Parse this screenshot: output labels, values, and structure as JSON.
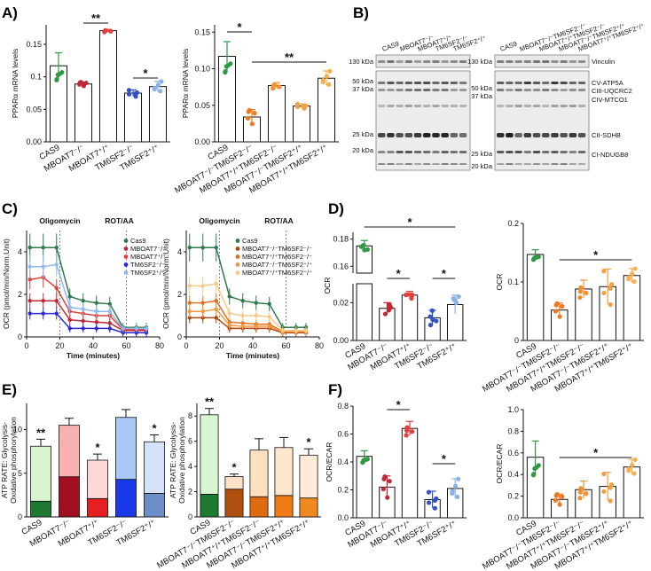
{
  "figure": {
    "panel_labels": [
      "A)",
      "B)",
      "C)",
      "D)",
      "E)",
      "F)"
    ],
    "western_blot": {
      "columns_left": [
        "CAS9",
        "MBOAT7⁻/⁻",
        "MBOAT7⁺/⁺",
        "TM6SF2⁻/⁻",
        "TM6SF2⁺/⁺"
      ],
      "columns_right": [
        "CAS9",
        "MBOAT7⁻/⁻TM6SF2⁻/⁻",
        "MBOAT7⁺/⁺TM6SF2⁻/⁻",
        "MBOAT7⁻/⁻TM6SF2⁺/⁺",
        "MBOAT7⁺/⁺TM6SF2⁺/⁺"
      ],
      "kda_left_top": "130 kDa",
      "kda_left": [
        "50 kDa",
        "37 kDa",
        "25 kDa",
        "20 kDa"
      ],
      "kda_right_top": "130 kDa",
      "kda_right": [
        "50 kDa",
        "37 kDa",
        "25 kDa",
        "20 kDa"
      ],
      "proteins": [
        "Vinculin",
        "CV-ATP5A",
        "CIII-UQCRC2",
        "CIV-MTCO1",
        "CII-SDHB",
        "CI-NDUGB8"
      ]
    }
  },
  "chart_data": [
    {
      "id": "A1",
      "type": "bar",
      "ylabel": "PPARα mRNA levels",
      "ylim": [
        0,
        0.18
      ],
      "yticks": [
        "0.00",
        "0.05",
        "0.1",
        "0.15"
      ],
      "categories": [
        "CAS9",
        "MBOAT7⁻/⁻",
        "MBOAT7⁺/⁺",
        "TM6SF2⁻/⁻",
        "TM6SF2⁺/⁺"
      ],
      "values": [
        0.117,
        0.089,
        0.171,
        0.075,
        0.085
      ],
      "errors": [
        0.02,
        0.003,
        0.002,
        0.005,
        0.008
      ],
      "colors": [
        "#2e9a44",
        "#c0283a",
        "#e0403a",
        "#3250c8",
        "#8ab2ea"
      ],
      "significance": [
        {
          "label": "**",
          "from": 1,
          "to": 2
        },
        {
          "label": "*",
          "from": 3,
          "to": 4
        }
      ]
    },
    {
      "id": "A2",
      "type": "bar",
      "ylabel": "PPARα mRNA levels",
      "ylim": [
        0,
        0.16
      ],
      "yticks": [
        "0.00",
        "0.05",
        "0.10",
        "0.15"
      ],
      "categories": [
        "CAS9",
        "MBOAT7⁻/⁻TM6SF2⁻/⁻",
        "MBOAT7⁺/⁺TM6SF2⁻/⁻",
        "MBOAT7⁻/⁻TM6SF2⁺/⁺",
        "MBOAT7⁺/⁺TM6SF2⁺/⁺"
      ],
      "values": [
        0.117,
        0.034,
        0.077,
        0.049,
        0.087
      ],
      "errors": [
        0.02,
        0.01,
        0.004,
        0.003,
        0.01
      ],
      "colors": [
        "#2e9a44",
        "#f07820",
        "#f29030",
        "#f4a040",
        "#f6b050"
      ],
      "significance": [
        {
          "label": "*",
          "from": 0,
          "to": 1
        },
        {
          "label": "**",
          "from": 1,
          "to": 4
        }
      ]
    },
    {
      "id": "C1",
      "type": "line",
      "xlabel": "Time (minutes)",
      "ylabel": "OCR (pmol/min/Norm.Unit)",
      "xlim": [
        0,
        80
      ],
      "ylim": [
        0,
        5
      ],
      "xticks": [
        "0",
        "20",
        "40",
        "60",
        "80"
      ],
      "yticks": [
        "0",
        "2",
        "4"
      ],
      "annotations": [
        "Oligomycin",
        "ROT/AA"
      ],
      "x": [
        2,
        10,
        18,
        26,
        34,
        42,
        50,
        58,
        66,
        72
      ],
      "series": [
        {
          "name": "Cas9",
          "color": "#2e7a4c",
          "values": [
            4.2,
            4.2,
            4.2,
            1.9,
            1.7,
            1.6,
            1.55,
            0.45,
            0.45,
            0.45
          ]
        },
        {
          "name": "MBOAT7⁻/⁻",
          "color": "#c0283a",
          "values": [
            1.7,
            1.7,
            1.7,
            0.8,
            0.75,
            0.7,
            0.65,
            0.3,
            0.3,
            0.3
          ]
        },
        {
          "name": "MBOAT7⁺/⁺",
          "color": "#e0403a",
          "values": [
            2.7,
            2.8,
            2.3,
            1.2,
            1.1,
            1.0,
            1.0,
            0.35,
            0.35,
            0.35
          ]
        },
        {
          "name": "TM6SF2⁻/⁻",
          "color": "#2a2ad0",
          "values": [
            1.1,
            1.1,
            1.1,
            0.4,
            0.4,
            0.4,
            0.4,
            0.2,
            0.2,
            0.2
          ]
        },
        {
          "name": "TM6SF2⁺/⁺",
          "color": "#90b8f0",
          "values": [
            3.3,
            3.3,
            3.4,
            1.4,
            1.3,
            1.2,
            1.2,
            0.4,
            0.4,
            0.4
          ]
        }
      ]
    },
    {
      "id": "C2",
      "type": "line",
      "xlabel": "Time (minutes)",
      "ylabel": "OCR (pmol/min/Norm.Unit)",
      "xlim": [
        0,
        80
      ],
      "ylim": [
        0,
        5
      ],
      "xticks": [
        "0",
        "20",
        "40",
        "60",
        "80"
      ],
      "yticks": [
        "0",
        "2",
        "4"
      ],
      "annotations": [
        "Oligomycin",
        "ROT/AA"
      ],
      "x": [
        2,
        10,
        18,
        26,
        34,
        42,
        50,
        58,
        66,
        72
      ],
      "series": [
        {
          "name": "Cas9",
          "color": "#2e7a4c",
          "values": [
            4.2,
            4.2,
            4.2,
            1.9,
            1.7,
            1.6,
            1.55,
            0.45,
            0.45,
            0.45
          ]
        },
        {
          "name": "MBOAT7⁻/⁻TM6SF2⁻/⁻",
          "color": "#b04810",
          "values": [
            0.9,
            0.9,
            0.9,
            0.4,
            0.4,
            0.4,
            0.4,
            0.2,
            0.2,
            0.2
          ]
        },
        {
          "name": "MBOAT7⁺/⁺TM6SF2⁻/⁻",
          "color": "#e07020",
          "values": [
            1.6,
            1.6,
            1.7,
            0.7,
            0.65,
            0.6,
            0.6,
            0.25,
            0.25,
            0.25
          ]
        },
        {
          "name": "MBOAT7⁻/⁻TM6SF2⁺/⁺",
          "color": "#f09a40",
          "values": [
            1.2,
            1.2,
            1.3,
            0.55,
            0.5,
            0.5,
            0.5,
            0.25,
            0.25,
            0.25
          ]
        },
        {
          "name": "MBOAT7⁺/⁺TM6SF2⁺/⁺",
          "color": "#f8c888",
          "values": [
            2.4,
            2.4,
            2.5,
            1.1,
            1.0,
            1.0,
            0.95,
            0.3,
            0.3,
            0.3
          ]
        }
      ]
    },
    {
      "id": "D1",
      "type": "bar",
      "ylabel": "OCR",
      "axis_break": true,
      "yticks": [
        "0.00",
        "0.02",
        "0.16",
        "0.18"
      ],
      "categories": [
        "CAS9",
        "MBOAT7⁻/⁻",
        "MBOAT7⁺/⁺",
        "TM6SF2⁻/⁻",
        "TM6SF2⁺/⁺"
      ],
      "values": [
        0.175,
        0.017,
        0.024,
        0.012,
        0.019
      ],
      "errors": [
        0.004,
        0.003,
        0.002,
        0.004,
        0.005
      ],
      "colors": [
        "#2e9a44",
        "#c0283a",
        "#e0403a",
        "#3250c8",
        "#8ab2ea"
      ],
      "significance": [
        {
          "label": "*",
          "from": 0,
          "to": 4
        },
        {
          "label": "*",
          "from": 1,
          "to": 2
        },
        {
          "label": "*",
          "from": 3,
          "to": 4
        }
      ]
    },
    {
      "id": "D2",
      "type": "bar",
      "ylabel": "OCR",
      "ylim": [
        0,
        0.2
      ],
      "yticks": [
        "0",
        "0.1",
        "0.2"
      ],
      "categories": [
        "CAS9",
        "MBOAT7⁻/⁻TM6SF2⁻/⁻",
        "MBOAT7⁺/⁺TM6SF2⁻/⁻",
        "MBOAT7⁻/⁻TM6SF2⁺/⁺",
        "MBOAT7⁺/⁺TM6SF2⁺/⁺"
      ],
      "values": [
        0.147,
        0.052,
        0.088,
        0.092,
        0.111
      ],
      "errors": [
        0.008,
        0.012,
        0.015,
        0.03,
        0.012
      ],
      "colors": [
        "#2e9a44",
        "#f07820",
        "#f29030",
        "#f4a040",
        "#f6b050"
      ],
      "significance": [
        {
          "label": "*",
          "from": 1,
          "to": 4
        }
      ]
    },
    {
      "id": "E1",
      "type": "bar",
      "stacked": true,
      "ylabel": "ATP RATE: Glycolysis-Oxidative phosphorylation",
      "ylim": [
        0,
        13
      ],
      "yticks": [
        "0",
        "5",
        "10"
      ],
      "categories": [
        "CAS9",
        "MBOAT7⁻/⁻",
        "MBOAT7⁺/⁺",
        "TM6SF2⁻/⁻",
        "TM6SF2⁺/⁺"
      ],
      "series": [
        {
          "name": "Glycolysis",
          "values": [
            1.8,
            4.6,
            2.1,
            4.3,
            2.7
          ]
        },
        {
          "name": "Oxidative phosphorylation",
          "values": [
            6.3,
            5.9,
            4.4,
            7.1,
            5.9
          ]
        }
      ],
      "errors": [
        0.8,
        0.8,
        0.7,
        0.9,
        0.8
      ],
      "colors_base": [
        "#1e7a30",
        "#a00e20",
        "#e62020",
        "#1a3aea",
        "#6d8ec8"
      ],
      "colors_top": [
        "#d8f5d0",
        "#f8b0b0",
        "#fcd8d8",
        "#a8c8f8",
        "#d4e2f8"
      ],
      "significance": [
        {
          "label": "**",
          "at": 0
        },
        {
          "label": "*",
          "at": 2
        },
        {
          "label": "*",
          "at": 4
        }
      ]
    },
    {
      "id": "E2",
      "type": "bar",
      "stacked": true,
      "ylabel": "ATP RATE: Glycolysis-Oxidative phosphorylation",
      "ylim": [
        0,
        9
      ],
      "yticks": [
        "0",
        "2",
        "4",
        "6",
        "8"
      ],
      "categories": [
        "CAS9",
        "MBOAT7⁻/⁻TM6SF2⁻/⁻",
        "MBOAT7⁺/⁺TM6SF2⁻/⁻",
        "MBOAT7⁻/⁻TM6SF2⁺/⁺",
        "MBOAT7⁺/⁺TM6SF2⁺/⁺"
      ],
      "series": [
        {
          "name": "Glycolysis",
          "values": [
            1.8,
            2.2,
            1.6,
            1.7,
            1.5
          ]
        },
        {
          "name": "Oxidative phosphorylation",
          "values": [
            6.3,
            1.0,
            3.7,
            3.8,
            3.4
          ]
        }
      ],
      "errors": [
        0.5,
        0.2,
        0.9,
        0.8,
        0.5
      ],
      "colors_base": [
        "#1e7a30",
        "#b05010",
        "#e06a10",
        "#f07a14",
        "#f08a20"
      ],
      "colors_top": [
        "#d8f5d0",
        "#fbe2c8",
        "#fce0c0",
        "#fde6cc",
        "#feecd8"
      ],
      "significance": [
        {
          "label": "**",
          "at": 0
        },
        {
          "label": "*",
          "at": 1
        },
        {
          "label": "*",
          "at": 4
        }
      ]
    },
    {
      "id": "F1",
      "type": "bar",
      "ylabel": "OCR/ECAR",
      "ylim": [
        0,
        0.8
      ],
      "yticks": [
        "0.0",
        "0.2",
        "0.4",
        "0.6",
        "0.8"
      ],
      "categories": [
        "CAS9",
        "MBOAT7⁻/⁻",
        "MBOAT7⁺/⁺",
        "TM6SF2⁻/⁻",
        "TM6SF2⁺/⁺"
      ],
      "values": [
        0.44,
        0.22,
        0.64,
        0.13,
        0.21
      ],
      "errors": [
        0.04,
        0.08,
        0.05,
        0.06,
        0.07
      ],
      "colors": [
        "#2e9a44",
        "#c0283a",
        "#e0403a",
        "#3250c8",
        "#8ab2ea"
      ],
      "significance": [
        {
          "label": "*",
          "from": 1,
          "to": 2
        },
        {
          "label": "*",
          "from": 3,
          "to": 4
        }
      ]
    },
    {
      "id": "F2",
      "type": "bar",
      "ylabel": "OCR/ECAR",
      "ylim": [
        0,
        1.0
      ],
      "yticks": [
        "0.0",
        "0.2",
        "0.4",
        "0.6",
        "0.8",
        "1.0"
      ],
      "categories": [
        "CAS9",
        "MBOAT7⁻/⁻TM6SF2⁻/⁻",
        "MBOAT7⁺/⁺TM6SF2⁻/⁻",
        "MBOAT7⁻/⁻TM6SF2⁺/⁺",
        "MBOAT7⁺/⁺TM6SF2⁺/⁺"
      ],
      "values": [
        0.56,
        0.17,
        0.26,
        0.29,
        0.47
      ],
      "errors": [
        0.15,
        0.05,
        0.08,
        0.13,
        0.07
      ],
      "colors": [
        "#2e9a44",
        "#f07820",
        "#f29030",
        "#f4a040",
        "#f6b050"
      ],
      "significance": [
        {
          "label": "*",
          "from": 1,
          "to": 4
        }
      ]
    }
  ]
}
